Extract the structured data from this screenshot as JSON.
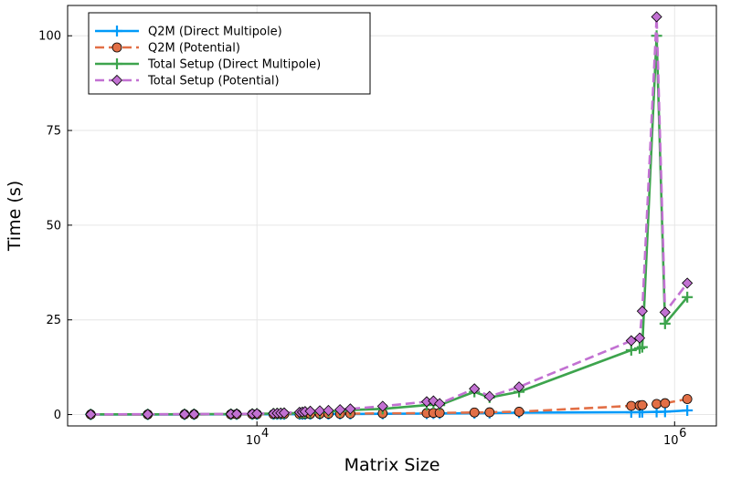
{
  "chart_data": {
    "type": "line",
    "title": "",
    "xlabel": "Matrix Size",
    "ylabel": "Time (s)",
    "xscale": "log",
    "xlim": [
      1240,
      1585000
    ],
    "ylim": [
      -3,
      108
    ],
    "x_ticks": [
      {
        "value": 10000,
        "base": "10",
        "exp": "4"
      },
      {
        "value": 1000000,
        "base": "10",
        "exp": "6"
      }
    ],
    "y_ticks": [
      0,
      25,
      50,
      75,
      100
    ],
    "grid": true,
    "legend": "top-left",
    "series": [
      {
        "name": "Q2M (Direct Multipole)",
        "color": "#009af9",
        "dash": "solid",
        "marker": "cross",
        "x": [
          1600,
          3000,
          4500,
          5000,
          7500,
          8000,
          9500,
          10000,
          12000,
          12500,
          13000,
          13500,
          16000,
          16500,
          17000,
          18000,
          20000,
          22000,
          25000,
          28000,
          40000,
          65000,
          70000,
          75000,
          110000,
          130000,
          180000,
          620000,
          680000,
          700000,
          820000,
          900000,
          1150000
        ],
        "y": [
          0.02,
          0.03,
          0.04,
          0.05,
          0.05,
          0.06,
          0.06,
          0.07,
          0.08,
          0.08,
          0.08,
          0.09,
          0.1,
          0.1,
          0.1,
          0.11,
          0.12,
          0.13,
          0.15,
          0.16,
          0.2,
          0.25,
          0.28,
          0.3,
          0.35,
          0.4,
          0.5,
          0.6,
          0.62,
          0.64,
          0.7,
          0.75,
          1.1
        ]
      },
      {
        "name": "Q2M (Potential)",
        "color": "#e26f46",
        "dash": "dashed",
        "marker": "circle",
        "x": [
          1600,
          3000,
          4500,
          5000,
          7500,
          8000,
          9500,
          10000,
          12000,
          12500,
          13000,
          13500,
          16000,
          16500,
          17000,
          18000,
          20000,
          22000,
          25000,
          28000,
          40000,
          65000,
          70000,
          75000,
          110000,
          130000,
          180000,
          620000,
          680000,
          700000,
          820000,
          900000,
          1150000
        ],
        "y": [
          0.02,
          0.04,
          0.05,
          0.06,
          0.07,
          0.08,
          0.08,
          0.1,
          0.1,
          0.11,
          0.12,
          0.12,
          0.14,
          0.15,
          0.15,
          0.16,
          0.18,
          0.2,
          0.22,
          0.25,
          0.3,
          0.38,
          0.42,
          0.45,
          0.55,
          0.6,
          0.75,
          2.3,
          2.4,
          2.5,
          2.8,
          3.0,
          4.1
        ]
      },
      {
        "name": "Total Setup (Direct Multipole)",
        "color": "#3da44d",
        "dash": "solid",
        "marker": "cross",
        "x": [
          1600,
          3000,
          4500,
          5000,
          7500,
          8000,
          9500,
          10000,
          12000,
          12500,
          13000,
          13500,
          16000,
          16500,
          17000,
          18000,
          20000,
          22000,
          25000,
          28000,
          40000,
          65000,
          70000,
          75000,
          110000,
          130000,
          180000,
          620000,
          680000,
          700000,
          820000,
          900000,
          1150000
        ],
        "y": [
          0.05,
          0.06,
          0.08,
          0.1,
          0.12,
          0.14,
          0.15,
          0.2,
          0.25,
          0.28,
          0.3,
          0.32,
          0.4,
          0.42,
          0.45,
          0.5,
          0.6,
          0.8,
          1.0,
          1.2,
          1.5,
          2.5,
          3.0,
          2.5,
          6.0,
          4.5,
          6.0,
          17.0,
          17.5,
          17.8,
          100.0,
          24.0,
          31.0
        ]
      },
      {
        "name": "Total Setup (Potential)",
        "color": "#c271d2",
        "dash": "dashed",
        "marker": "diamond",
        "x": [
          1600,
          3000,
          4500,
          5000,
          7500,
          8000,
          9500,
          10000,
          12000,
          12500,
          13000,
          13500,
          16000,
          16500,
          17000,
          18000,
          20000,
          22000,
          25000,
          28000,
          40000,
          65000,
          70000,
          75000,
          110000,
          130000,
          180000,
          620000,
          680000,
          700000,
          820000,
          900000,
          1150000
        ],
        "y": [
          0.05,
          0.07,
          0.1,
          0.12,
          0.15,
          0.17,
          0.2,
          0.25,
          0.3,
          0.35,
          0.4,
          0.45,
          0.6,
          0.65,
          0.8,
          0.9,
          1.0,
          1.1,
          1.3,
          1.5,
          2.2,
          3.4,
          3.6,
          2.9,
          6.8,
          4.8,
          7.3,
          19.5,
          20.2,
          27.3,
          105.0,
          27.0,
          34.7
        ]
      }
    ]
  }
}
